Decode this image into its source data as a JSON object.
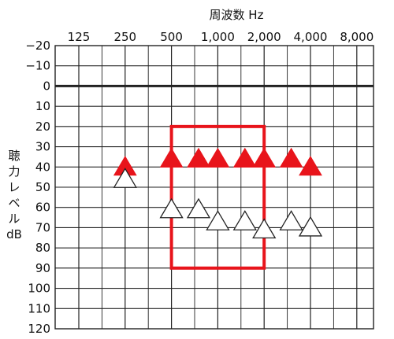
{
  "chart_data": {
    "type": "scatter",
    "title": "周波数 Hz",
    "xlabel": "周波数 Hz",
    "ylabel": "聴力レベル dB",
    "ylabel_lines": [
      "聴",
      "力",
      "レ",
      "ベ",
      "ル",
      "dB"
    ],
    "x_tick_labels": [
      "125",
      "250",
      "500",
      "1,000",
      "2,000",
      "4,000",
      "8,000"
    ],
    "x_ticks_hz": [
      125,
      250,
      500,
      1000,
      2000,
      4000,
      8000
    ],
    "y_tick_labels": [
      "−20",
      "−10",
      "0",
      "10",
      "20",
      "30",
      "40",
      "50",
      "60",
      "70",
      "80",
      "90",
      "100",
      "110",
      "120"
    ],
    "ylim": [
      -20,
      120
    ],
    "y_inverted": true,
    "x_log2": true,
    "grid": true,
    "series": [
      {
        "marker": "filled-triangle",
        "color": "#e8141b",
        "points": [
          {
            "x": 250,
            "y": 40
          },
          {
            "x": 500,
            "y": 36
          },
          {
            "x": 750,
            "y": 36
          },
          {
            "x": 1000,
            "y": 36
          },
          {
            "x": 1500,
            "y": 36
          },
          {
            "x": 2000,
            "y": 36
          },
          {
            "x": 3000,
            "y": 36
          },
          {
            "x": 4000,
            "y": 40
          }
        ]
      },
      {
        "marker": "open-triangle",
        "color": "#222222",
        "points": [
          {
            "x": 250,
            "y": 46
          },
          {
            "x": 500,
            "y": 61
          },
          {
            "x": 750,
            "y": 61
          },
          {
            "x": 1000,
            "y": 67
          },
          {
            "x": 1500,
            "y": 67
          },
          {
            "x": 2000,
            "y": 71
          },
          {
            "x": 3000,
            "y": 67
          },
          {
            "x": 4000,
            "y": 70
          }
        ]
      }
    ],
    "annotation_box": {
      "x_range": [
        500,
        2000
      ],
      "y_range": [
        20,
        90
      ],
      "color": "#e8141b"
    }
  }
}
